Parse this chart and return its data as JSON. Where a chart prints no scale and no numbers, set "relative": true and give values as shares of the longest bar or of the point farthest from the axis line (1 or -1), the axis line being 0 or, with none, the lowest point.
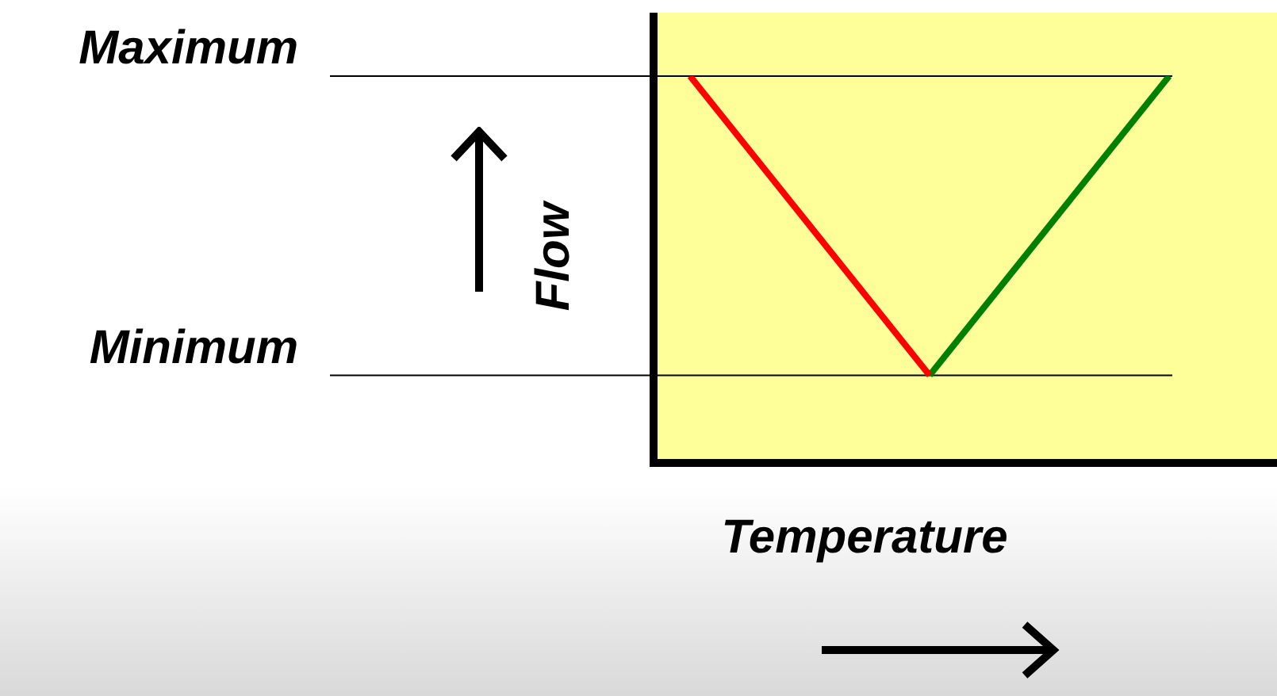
{
  "chart_data": {
    "type": "line",
    "relative": true,
    "xlabel": "Temperature",
    "ylabel": "Flow",
    "legend": false,
    "categories": [
      null,
      null,
      null
    ],
    "series": [
      {
        "color": "#ff0000",
        "values": [
          1,
          0.22,
          null
        ]
      },
      {
        "color": "#008000",
        "values": [
          null,
          0.22,
          1
        ]
      }
    ],
    "ref_lines": [
      {
        "axis": "y",
        "value": 1,
        "label": "Maximum"
      },
      {
        "axis": "y",
        "value": 0.22,
        "label": "Minimum"
      }
    ]
  }
}
